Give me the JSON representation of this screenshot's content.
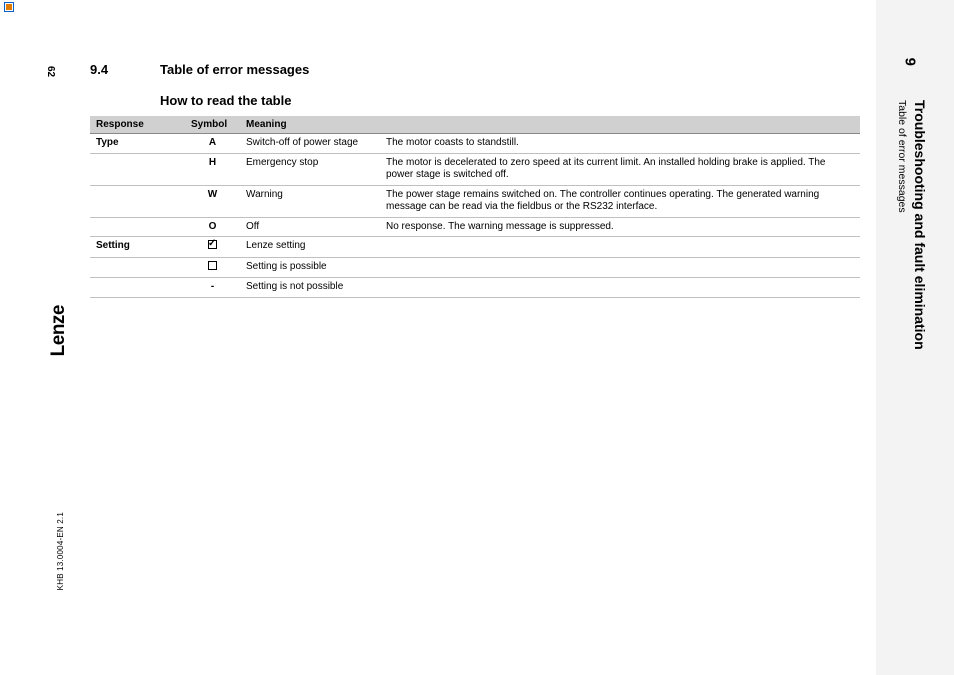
{
  "top_marker": true,
  "left_margin": {
    "page_number": "62",
    "brand": "Lenze",
    "doc_ref": "KHB 13.0004-EN   2.1"
  },
  "side": {
    "chapter_number": "9",
    "chapter_title": "Troubleshooting and fault elimination",
    "subtitle": "Table of error messages",
    "bg_color": "#f3f3f3"
  },
  "section": {
    "number": "9.4",
    "title": "Table of error messages",
    "subtitle": "How to read the table"
  },
  "table": {
    "header_bg": "#d0d0d0",
    "border_color": "#c0c0c0",
    "columns": [
      "Response",
      "Symbol",
      "Meaning"
    ],
    "rows": [
      {
        "response": "Type",
        "symbol": "A",
        "meaning1": "Switch-off of power stage",
        "meaning2": "The motor coasts to standstill."
      },
      {
        "response": "",
        "symbol": "H",
        "meaning1": "Emergency stop",
        "meaning2": "The motor is decelerated to zero speed at its current limit. An installed holding brake is applied. The power stage is switched off."
      },
      {
        "response": "",
        "symbol": "W",
        "meaning1": "Warning",
        "meaning2": "The power stage remains switched on. The controller continues operating. The generated warning message can be read via the fieldbus or the RS232 interface."
      },
      {
        "response": "",
        "symbol": "O",
        "meaning1": "Off",
        "meaning2": "No response. The warning message is suppressed."
      },
      {
        "response": "Setting",
        "symbol_type": "checkbox_ticked",
        "meaning1": "Lenze setting",
        "meaning2": ""
      },
      {
        "response": "",
        "symbol_type": "checkbox_empty",
        "meaning1": "Setting is possible",
        "meaning2": ""
      },
      {
        "response": "",
        "symbol": "-",
        "meaning1": "Setting is not possible",
        "meaning2": ""
      }
    ]
  }
}
